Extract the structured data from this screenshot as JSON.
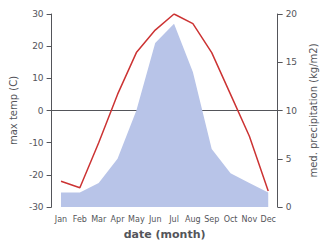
{
  "chart_data": {
    "type": "line",
    "xlabel": "date (month)",
    "ylabel": "max temp (C)",
    "y2label": "med. precipitation (kg/m2)",
    "categories": [
      "Jan",
      "Feb",
      "Mar",
      "Apr",
      "May",
      "Jun",
      "Jul",
      "Aug",
      "Sep",
      "Oct",
      "Nov",
      "Dec"
    ],
    "series": [
      {
        "type": "area",
        "axis": "y2",
        "color": "#b8c4e8",
        "values": [
          1.5,
          1.5,
          2.5,
          5.0,
          10.0,
          17.0,
          19.0,
          14.0,
          6.0,
          3.5,
          2.5,
          1.5
        ]
      },
      {
        "type": "line",
        "color": "#cc3333",
        "values": [
          -22,
          -24,
          -10,
          5,
          18,
          25,
          30,
          27,
          18,
          5,
          -8,
          -25
        ]
      }
    ],
    "ylim": [
      -30,
      30
    ],
    "yticks": [
      -30,
      -20,
      -10,
      0,
      10,
      20,
      30
    ],
    "y2lim": [
      0,
      20
    ],
    "y2ticks": [
      0,
      5,
      10,
      15,
      20
    ],
    "grid": false
  }
}
